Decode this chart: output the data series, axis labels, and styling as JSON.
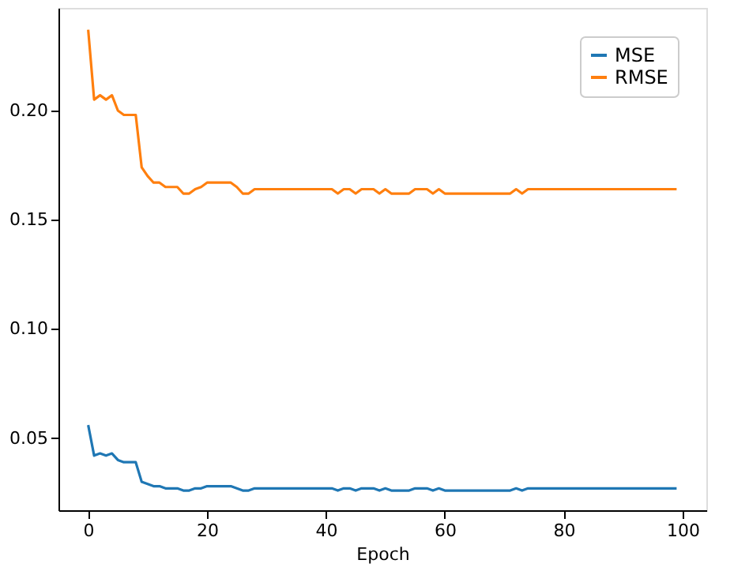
{
  "chart_data": {
    "type": "line",
    "xlabel": "Epoch",
    "x": [
      0,
      1,
      2,
      3,
      4,
      5,
      6,
      7,
      8,
      9,
      10,
      11,
      12,
      13,
      14,
      15,
      16,
      17,
      18,
      19,
      20,
      21,
      22,
      23,
      24,
      25,
      26,
      27,
      28,
      29,
      30,
      31,
      32,
      33,
      34,
      35,
      36,
      37,
      38,
      39,
      40,
      41,
      42,
      43,
      44,
      45,
      46,
      47,
      48,
      49,
      50,
      51,
      52,
      53,
      54,
      55,
      56,
      57,
      58,
      59,
      60,
      61,
      62,
      63,
      64,
      65,
      66,
      67,
      68,
      69,
      70,
      71,
      72,
      73,
      74,
      75,
      76,
      77,
      78,
      79,
      80,
      81,
      82,
      83,
      84,
      85,
      86,
      87,
      88,
      89,
      90,
      91,
      92,
      93,
      94,
      95,
      96,
      97,
      98,
      99
    ],
    "series": [
      {
        "name": "MSE",
        "color": "#1f77b4",
        "values": [
          0.056,
          0.042,
          0.043,
          0.042,
          0.043,
          0.04,
          0.039,
          0.039,
          0.039,
          0.03,
          0.029,
          0.028,
          0.028,
          0.027,
          0.027,
          0.027,
          0.026,
          0.026,
          0.027,
          0.027,
          0.028,
          0.028,
          0.028,
          0.028,
          0.028,
          0.027,
          0.026,
          0.026,
          0.027,
          0.027,
          0.027,
          0.027,
          0.027,
          0.027,
          0.027,
          0.027,
          0.027,
          0.027,
          0.027,
          0.027,
          0.027,
          0.027,
          0.026,
          0.027,
          0.027,
          0.026,
          0.027,
          0.027,
          0.027,
          0.026,
          0.027,
          0.026,
          0.026,
          0.026,
          0.026,
          0.027,
          0.027,
          0.027,
          0.026,
          0.027,
          0.026,
          0.026,
          0.026,
          0.026,
          0.026,
          0.026,
          0.026,
          0.026,
          0.026,
          0.026,
          0.026,
          0.026,
          0.027,
          0.026,
          0.027,
          0.027,
          0.027,
          0.027,
          0.027,
          0.027,
          0.027,
          0.027,
          0.027,
          0.027,
          0.027,
          0.027,
          0.027,
          0.027,
          0.027,
          0.027,
          0.027,
          0.027,
          0.027,
          0.027,
          0.027,
          0.027,
          0.027,
          0.027,
          0.027,
          0.027
        ]
      },
      {
        "name": "RMSE",
        "color": "#ff7f0e",
        "values": [
          0.237,
          0.205,
          0.207,
          0.205,
          0.207,
          0.2,
          0.198,
          0.198,
          0.198,
          0.174,
          0.17,
          0.167,
          0.167,
          0.165,
          0.165,
          0.165,
          0.162,
          0.162,
          0.164,
          0.165,
          0.167,
          0.167,
          0.167,
          0.167,
          0.167,
          0.165,
          0.162,
          0.162,
          0.164,
          0.164,
          0.164,
          0.164,
          0.164,
          0.164,
          0.164,
          0.164,
          0.164,
          0.164,
          0.164,
          0.164,
          0.164,
          0.164,
          0.162,
          0.164,
          0.164,
          0.162,
          0.164,
          0.164,
          0.164,
          0.162,
          0.164,
          0.162,
          0.162,
          0.162,
          0.162,
          0.164,
          0.164,
          0.164,
          0.162,
          0.164,
          0.162,
          0.162,
          0.162,
          0.162,
          0.162,
          0.162,
          0.162,
          0.162,
          0.162,
          0.162,
          0.162,
          0.162,
          0.164,
          0.162,
          0.164,
          0.164,
          0.164,
          0.164,
          0.164,
          0.164,
          0.164,
          0.164,
          0.164,
          0.164,
          0.164,
          0.164,
          0.164,
          0.164,
          0.164,
          0.164,
          0.164,
          0.164,
          0.164,
          0.164,
          0.164,
          0.164,
          0.164,
          0.164,
          0.164,
          0.164
        ]
      }
    ],
    "xlim": [
      -5,
      104
    ],
    "xticks": [
      0,
      20,
      40,
      60,
      80,
      100
    ],
    "ylim": [
      0.017,
      0.247
    ],
    "yticks": [
      0.05,
      {
        "value": 0.1,
        "label": "0.10"
      },
      0.15,
      {
        "value": 0.2,
        "label": "0.20"
      }
    ],
    "grid": false,
    "legend": "top right",
    "line_style": "solid",
    "marker": "none"
  }
}
